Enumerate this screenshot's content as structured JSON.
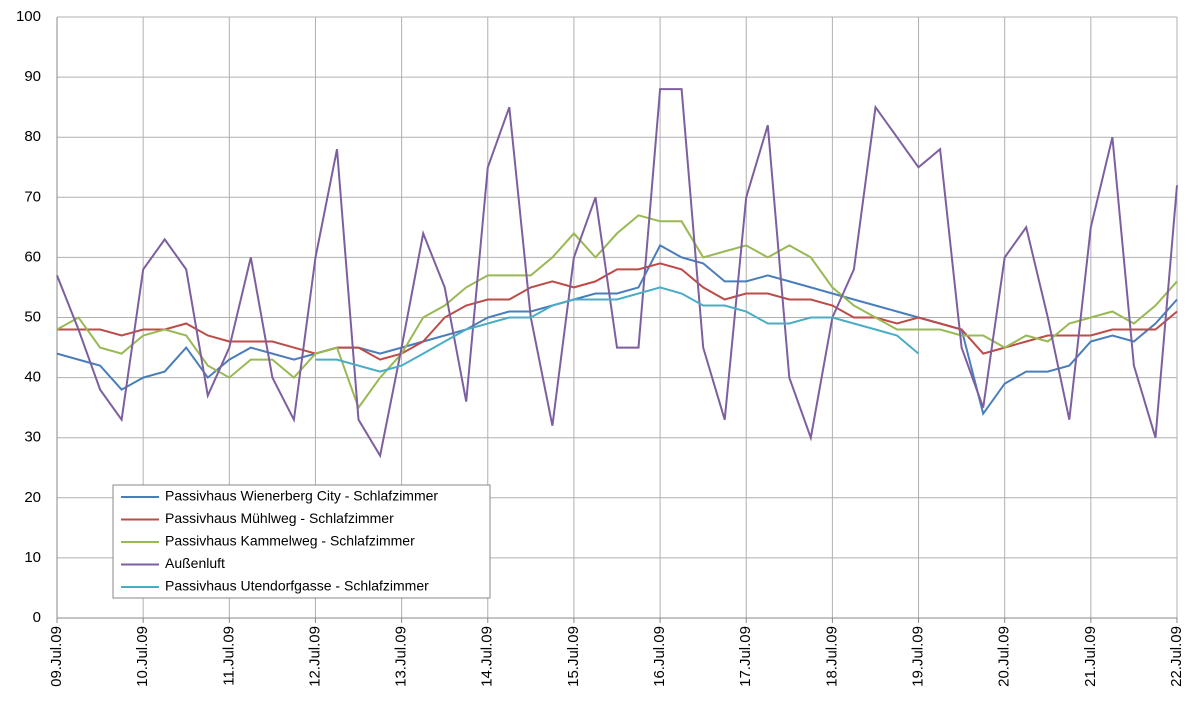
{
  "chart_data": {
    "type": "line",
    "x": [
      0,
      0.25,
      0.5,
      0.75,
      1,
      1.25,
      1.5,
      1.75,
      2,
      2.25,
      2.5,
      2.75,
      3,
      3.25,
      3.5,
      3.75,
      4,
      4.25,
      4.5,
      4.75,
      5,
      5.25,
      5.5,
      5.75,
      6,
      6.25,
      6.5,
      6.75,
      7,
      7.25,
      7.5,
      7.75,
      8,
      8.25,
      8.5,
      8.75,
      9,
      9.25,
      9.5,
      9.75,
      10,
      10.25,
      10.5,
      10.75,
      11,
      11.25,
      11.5,
      11.75,
      12,
      12.25,
      12.5,
      12.75,
      13
    ],
    "series": [
      {
        "name": "Passivhaus Wienerberg City - Schlafzimmer",
        "color": "#4a7ebb",
        "values": [
          44,
          43,
          42,
          38,
          40,
          41,
          45,
          40,
          43,
          45,
          44,
          43,
          44,
          45,
          45,
          44,
          45,
          46,
          47,
          48,
          50,
          51,
          51,
          52,
          53,
          54,
          54,
          55,
          62,
          60,
          59,
          56,
          56,
          57,
          56,
          55,
          54,
          53,
          52,
          51,
          50,
          49,
          48,
          34,
          39,
          41,
          41,
          42,
          46,
          47,
          46,
          49,
          53
        ]
      },
      {
        "name": "Passivhaus Mühlweg - Schlafzimmer",
        "color": "#be4b48",
        "values": [
          48,
          48,
          48,
          47,
          48,
          48,
          49,
          47,
          46,
          46,
          46,
          45,
          44,
          45,
          45,
          43,
          44,
          46,
          50,
          52,
          53,
          53,
          55,
          56,
          55,
          56,
          58,
          58,
          59,
          58,
          55,
          53,
          54,
          54,
          53,
          53,
          52,
          50,
          50,
          49,
          50,
          49,
          48,
          44,
          45,
          46,
          47,
          47,
          47,
          48,
          48,
          48,
          51
        ]
      },
      {
        "name": "Passivhaus Kammelweg - Schlafzimmer",
        "color": "#98b954",
        "values": [
          48,
          50,
          45,
          44,
          47,
          48,
          47,
          42,
          40,
          43,
          43,
          40,
          44,
          45,
          35,
          40,
          44,
          50,
          52,
          55,
          57,
          57,
          57,
          60,
          64,
          60,
          64,
          67,
          66,
          66,
          60,
          61,
          62,
          60,
          62,
          60,
          55,
          52,
          50,
          48,
          48,
          48,
          47,
          47,
          45,
          47,
          46,
          49,
          50,
          51,
          49,
          52,
          56
        ]
      },
      {
        "name": "Außenluft",
        "color": "#7d5fa0",
        "values": [
          57,
          48,
          38,
          33,
          58,
          63,
          58,
          37,
          45,
          60,
          40,
          33,
          60,
          78,
          33,
          27,
          45,
          64,
          55,
          36,
          75,
          85,
          50,
          32,
          60,
          70,
          45,
          45,
          88,
          88,
          45,
          33,
          70,
          82,
          40,
          30,
          50,
          58,
          85,
          80,
          75,
          78,
          45,
          35,
          60,
          65,
          50,
          33,
          65,
          80,
          42,
          30,
          72
        ]
      },
      {
        "name": "Passivhaus Utendorfgasse - Schlafzimmer",
        "color": "#4bacc6",
        "values": [
          null,
          null,
          null,
          null,
          null,
          null,
          null,
          null,
          null,
          null,
          null,
          null,
          43,
          43,
          42,
          41,
          42,
          44,
          46,
          48,
          49,
          50,
          50,
          52,
          53,
          53,
          53,
          54,
          55,
          54,
          52,
          52,
          51,
          49,
          49,
          50,
          50,
          49,
          48,
          47,
          44,
          null,
          null,
          null,
          null,
          null,
          null,
          null,
          null,
          null,
          null,
          null,
          null
        ]
      }
    ],
    "xlim": [
      0,
      13
    ],
    "xticks": [
      {
        "value": 0,
        "label": "09.Jul.09"
      },
      {
        "value": 1,
        "label": "10.Jul.09"
      },
      {
        "value": 2,
        "label": "11.Jul.09"
      },
      {
        "value": 3,
        "label": "12.Jul.09"
      },
      {
        "value": 4,
        "label": "13.Jul.09"
      },
      {
        "value": 5,
        "label": "14.Jul.09"
      },
      {
        "value": 6,
        "label": "15.Jul.09"
      },
      {
        "value": 7,
        "label": "16.Jul.09"
      },
      {
        "value": 8,
        "label": "17.Jul.09"
      },
      {
        "value": 9,
        "label": "18.Jul.09"
      },
      {
        "value": 10,
        "label": "19.Jul.09"
      },
      {
        "value": 11,
        "label": "20.Jul.09"
      },
      {
        "value": 12,
        "label": "21.Jul.09"
      },
      {
        "value": 13,
        "label": "22.Jul.09"
      }
    ],
    "ylim": [
      0,
      100
    ],
    "yticks": [
      0,
      10,
      20,
      30,
      40,
      50,
      60,
      70,
      80,
      90,
      100
    ],
    "grid": true,
    "legend": "lower left"
  }
}
